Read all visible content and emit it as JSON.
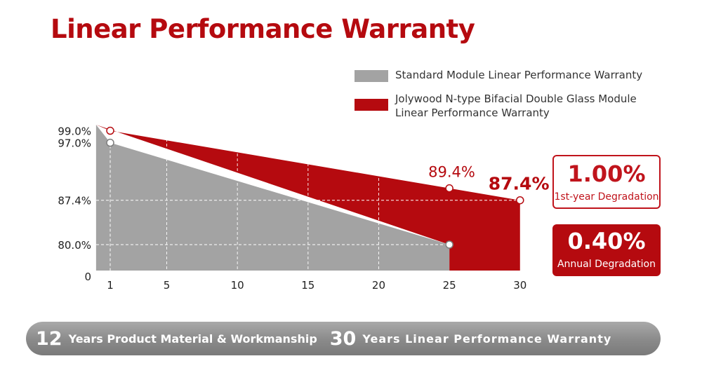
{
  "title": "Linear Performance Warranty",
  "colors": {
    "brand_red": "#b50a0f",
    "grey_fill": "#a3a3a3"
  },
  "legend": {
    "standard": "Standard Module Linear Performance Warranty",
    "jolywood_line1": "Jolywood N-type Bifacial Double Glass Module",
    "jolywood_line2": "Linear Performance Warranty"
  },
  "chart_data": {
    "type": "area",
    "title": "Linear Performance Warranty",
    "xlabel": "",
    "ylabel": "",
    "x_ticks": [
      "1",
      "5",
      "10",
      "15",
      "20",
      "25",
      "30"
    ],
    "y_ticks": [
      "0",
      "80.0%",
      "87.4%",
      "97.0%",
      "99.0%"
    ],
    "series": [
      {
        "name": "Standard Module Linear Performance Warranty",
        "color": "#a3a3a3",
        "points": [
          {
            "x": 0,
            "y": 100
          },
          {
            "x": 1,
            "y": 97.0
          },
          {
            "x": 25,
            "y": 80.0
          }
        ]
      },
      {
        "name": "Jolywood N-type Bifacial Double Glass Module Linear Performance Warranty",
        "color": "#b50a0f",
        "points": [
          {
            "x": 0,
            "y": 100
          },
          {
            "x": 1,
            "y": 99.0
          },
          {
            "x": 25,
            "y": 89.4
          },
          {
            "x": 30,
            "y": 87.4
          }
        ]
      }
    ],
    "annotations": [
      {
        "x": 25,
        "y": 89.4,
        "label": "89.4%"
      },
      {
        "x": 30,
        "y": 87.4,
        "label": "87.4%"
      }
    ],
    "grid": true
  },
  "stats": {
    "first_year_value": "1.00%",
    "first_year_label": "1st-year Degradation",
    "annual_value": "0.40%",
    "annual_label": "Annual Degradation"
  },
  "banner": {
    "num1": "12",
    "text1": "Years Product Material & Workmanship",
    "num2": "30",
    "text2": "Years Linear Performance Warranty"
  }
}
